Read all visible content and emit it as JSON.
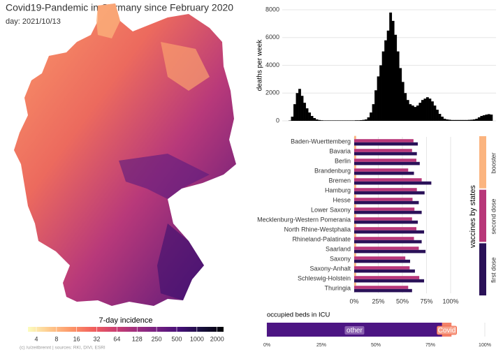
{
  "footer": "(c) /u/zeitbrennt | sources: RKI, DIVI, ESRI",
  "chart_data": [
    {
      "type": "choropleth-legend",
      "title": "Covid19-Pandemic in Germany since February 2020",
      "subtitle": "day: 2021/10/13",
      "legend_title": "7-day incidence",
      "log": true,
      "xlim": [
        3,
        2500
      ],
      "xticks": [
        4,
        8,
        16,
        32,
        64,
        128,
        250,
        500,
        1000,
        2000
      ],
      "colors": [
        "#fcfdbf",
        "#fec98d",
        "#fd9668",
        "#f1605d",
        "#cd4071",
        "#9e2f7f",
        "#721f81",
        "#440f76",
        "#180f3d",
        "#000004"
      ]
    },
    {
      "type": "column",
      "ylabel": "deaths per week",
      "color": "#000000",
      "grid": true,
      "ylim": [
        0,
        8000
      ],
      "yticks": [
        0,
        2000,
        4000,
        6000,
        8000
      ],
      "values": [
        20,
        300,
        1200,
        2000,
        2300,
        1800,
        1300,
        900,
        600,
        350,
        200,
        100,
        60,
        40,
        30,
        30,
        30,
        30,
        30,
        30,
        30,
        30,
        30,
        30,
        30,
        30,
        30,
        40,
        40,
        50,
        70,
        100,
        250,
        600,
        1200,
        2200,
        3200,
        4000,
        5000,
        5800,
        6500,
        7800,
        7200,
        6200,
        5000,
        3800,
        2800,
        2000,
        1500,
        1200,
        1100,
        1000,
        1100,
        1300,
        1500,
        1600,
        1700,
        1600,
        1400,
        1100,
        800,
        500,
        300,
        150,
        100,
        80,
        60,
        60,
        60,
        60,
        60,
        60,
        60,
        70,
        80,
        100,
        150,
        250,
        350,
        400,
        450,
        480,
        450
      ]
    },
    {
      "type": "hbar",
      "legend_title": "vaccines by states",
      "grid": true,
      "categories": [
        "Baden-Wuerttemberg",
        "Bavaria",
        "Berlin",
        "Brandenburg",
        "Bremen",
        "Hamburg",
        "Hesse",
        "Lower Saxony",
        "Mecklenburg-Western Pomerania",
        "North Rhine-Westphalia",
        "Rhineland-Palatinate",
        "Saarland",
        "Saxony",
        "Saxony-Anhalt",
        "Schleswig-Holstein",
        "Thuringia"
      ],
      "series": [
        {
          "name": "booster",
          "color": "#fbb47f",
          "values": [
            2,
            2,
            2,
            2,
            2,
            2,
            2,
            2,
            2,
            2,
            2,
            2,
            2,
            2,
            2,
            2
          ]
        },
        {
          "name": "second dose",
          "color": "#b83779",
          "values": [
            61.5,
            60,
            64.5,
            56,
            70,
            65,
            60.5,
            62.5,
            60,
            64.5,
            62,
            67,
            53,
            57.5,
            67.5,
            56
          ]
        },
        {
          "name": "first dose",
          "color": "#2a1158",
          "values": [
            66,
            65,
            68,
            62,
            80,
            73,
            67,
            70,
            66,
            72.5,
            70,
            74,
            58,
            63,
            72.5,
            60
          ]
        }
      ],
      "xlim": [
        0,
        100
      ],
      "xticks": [
        {
          "value": 0,
          "label": "0%"
        },
        {
          "value": 25,
          "label": "25%"
        },
        {
          "value": 50,
          "label": "50%"
        },
        {
          "value": 75,
          "label": "75%"
        },
        {
          "value": 100,
          "label": "100%"
        }
      ]
    },
    {
      "type": "stacked-hbar",
      "title": "occupied beds in ICU",
      "series": [
        {
          "name": "other",
          "color": "#4c1583",
          "values": [
            80.4
          ]
        },
        {
          "name": "Covid",
          "color": "#f4826a",
          "values": [
            4.3
          ]
        }
      ],
      "xlim": [
        0,
        100
      ],
      "xticks": [
        {
          "value": 0,
          "label": "0%"
        },
        {
          "value": 25,
          "label": "25%"
        },
        {
          "value": 50,
          "label": "50%"
        },
        {
          "value": 75,
          "label": "75%"
        },
        {
          "value": 100,
          "label": "100%"
        }
      ]
    }
  ]
}
